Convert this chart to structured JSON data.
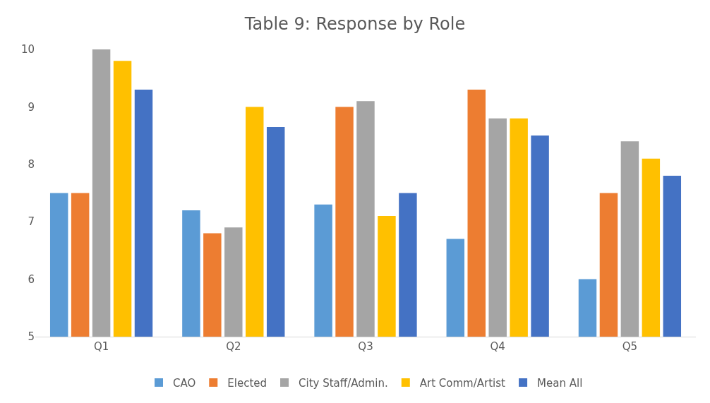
{
  "chart_data": {
    "type": "bar",
    "title": "Table 9: Response by Role",
    "categories": [
      "Q1",
      "Q2",
      "Q3",
      "Q4",
      "Q5"
    ],
    "series": [
      {
        "name": "CAO",
        "color": "#5b9bd5",
        "values": [
          7.5,
          7.2,
          7.3,
          6.7,
          6.0
        ]
      },
      {
        "name": "Elected",
        "color": "#ed7d31",
        "values": [
          7.5,
          6.8,
          9.0,
          9.3,
          7.5
        ]
      },
      {
        "name": "City Staff/Admin.",
        "color": "#a5a5a5",
        "values": [
          10.0,
          6.9,
          9.1,
          8.8,
          8.4
        ]
      },
      {
        "name": "Art Comm/Artist",
        "color": "#ffc000",
        "values": [
          9.8,
          9.0,
          7.1,
          8.8,
          8.1
        ]
      },
      {
        "name": "Mean All",
        "color": "#4472c4",
        "values": [
          9.3,
          8.65,
          7.5,
          8.5,
          7.8
        ]
      }
    ],
    "ylim": [
      5,
      10
    ],
    "yticks": [
      5,
      6,
      7,
      8,
      9,
      10
    ],
    "grid": false,
    "legend": "bottom"
  }
}
